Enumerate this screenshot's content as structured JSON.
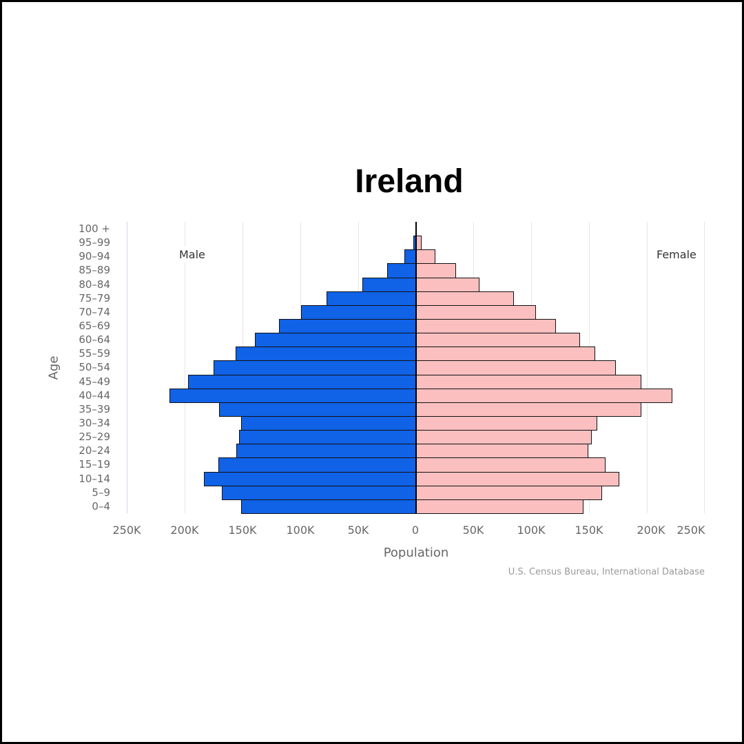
{
  "title": "Ireland",
  "labels": {
    "male": "Male",
    "female": "Female"
  },
  "axes": {
    "x_title": "Population",
    "y_title": "Age",
    "x_ticks": [
      "250K",
      "200K",
      "150K",
      "100K",
      "50K",
      "0",
      "50K",
      "100K",
      "150K",
      "200K",
      "250K"
    ]
  },
  "credit": "U.S. Census Bureau, International Database",
  "colors": {
    "male": "#1062e6",
    "female": "#fbbfbf",
    "outline": "#111111"
  },
  "chart_data": {
    "type": "bar",
    "subtype": "population-pyramid",
    "title": "Ireland",
    "xlabel": "Population",
    "ylabel": "Age",
    "xlim": [
      -250000,
      250000
    ],
    "grid": true,
    "legend": {
      "entries": [
        "Male",
        "Female"
      ],
      "position": "top inside plot (Male left, Female right)"
    },
    "categories": [
      "0-4",
      "5-9",
      "10-14",
      "15-19",
      "20-24",
      "25-29",
      "30-34",
      "35-39",
      "40-44",
      "45-49",
      "50-54",
      "55-59",
      "60-64",
      "65-69",
      "70-74",
      "75-79",
      "80-84",
      "85-89",
      "90-94",
      "95-99",
      "100 +"
    ],
    "series": [
      {
        "name": "Male",
        "values": [
          151000,
          168000,
          183000,
          171000,
          155000,
          153000,
          151000,
          170000,
          213000,
          197000,
          175000,
          156000,
          139000,
          118000,
          99000,
          77000,
          46000,
          25000,
          10000,
          2000,
          300
        ]
      },
      {
        "name": "Female",
        "values": [
          145000,
          161000,
          176000,
          164000,
          149000,
          152000,
          157000,
          195000,
          222000,
          195000,
          173000,
          155000,
          142000,
          121000,
          104000,
          85000,
          55000,
          35000,
          17000,
          5000,
          1000
        ]
      }
    ],
    "source": "U.S. Census Bureau, International Database"
  }
}
